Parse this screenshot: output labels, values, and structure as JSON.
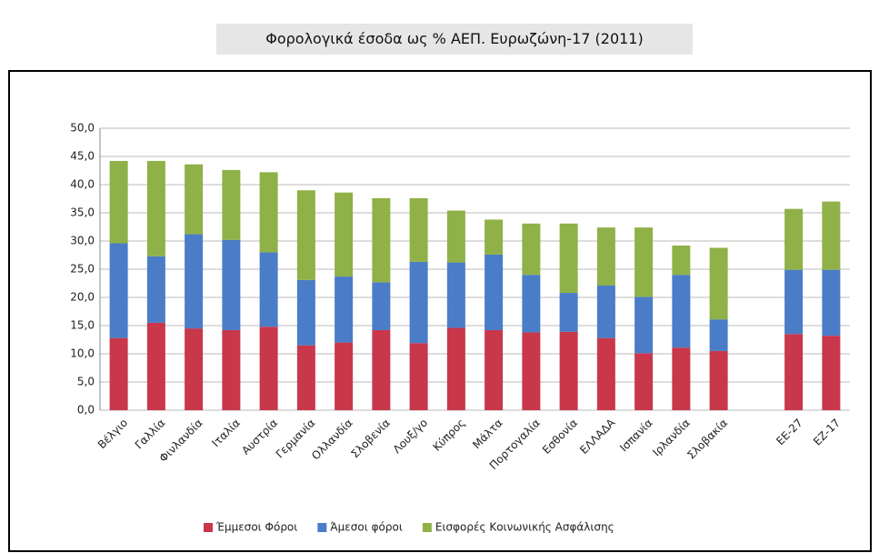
{
  "chart_data": {
    "type": "stacked_bar",
    "title": "Φορολογικά έσοδα ως % ΑΕΠ. Ευρωζώνη-17 (2011)",
    "categories": [
      "Βέλγιο",
      "Γαλλία",
      "Φινλανδία",
      "Ιταλία",
      "Αυστρία",
      "Γερμανία",
      "Ολλανδία",
      "Σλοβενία",
      "Λουξ/γο",
      "Κύπρος",
      "Μάλτα",
      "Πορτογαλία",
      "Εσθονία",
      "ΕΛΛΑΔΑ",
      "Ισπανία",
      "Ιρλανδία",
      "Σλοβακία",
      null,
      "ΕΕ-27",
      "ΕΖ-17"
    ],
    "series": [
      {
        "name": "Έμμεσοι Φόροι",
        "color": "#c8374a",
        "values": [
          12.8,
          15.5,
          14.5,
          14.2,
          14.8,
          11.5,
          12.0,
          14.2,
          11.9,
          14.6,
          14.2,
          13.8,
          13.9,
          12.8,
          10.1,
          11.1,
          10.5,
          null,
          13.5,
          13.2
        ]
      },
      {
        "name": "Άμεσοι φόροι",
        "color": "#4a7cc7",
        "values": [
          16.8,
          11.8,
          16.7,
          16.0,
          13.2,
          11.6,
          11.7,
          8.5,
          14.4,
          11.6,
          13.4,
          10.2,
          6.9,
          9.3,
          10.0,
          12.9,
          5.6,
          null,
          11.4,
          11.7
        ]
      },
      {
        "name": "Εισφορές Κοινωνικής Ασφάλισης",
        "color": "#8fb148",
        "values": [
          14.6,
          16.9,
          12.4,
          12.4,
          14.2,
          15.9,
          14.9,
          14.9,
          11.3,
          9.2,
          6.2,
          9.1,
          12.3,
          10.3,
          12.3,
          5.2,
          12.7,
          null,
          10.8,
          12.1
        ]
      }
    ],
    "ylim": [
      0,
      50
    ],
    "yticks": [
      {
        "value": 0,
        "label": "0,0"
      },
      {
        "value": 5,
        "label": "5,0"
      },
      {
        "value": 10,
        "label": "10,0"
      },
      {
        "value": 15,
        "label": "15,0"
      },
      {
        "value": 20,
        "label": "20,0"
      },
      {
        "value": 25,
        "label": "25,0"
      },
      {
        "value": 30,
        "label": "30,0"
      },
      {
        "value": 35,
        "label": "35,0"
      },
      {
        "value": 40,
        "label": "40,0"
      },
      {
        "value": 45,
        "label": "45,0"
      },
      {
        "value": 50,
        "label": "50,0"
      }
    ],
    "grid": true,
    "legend": "bottom"
  }
}
